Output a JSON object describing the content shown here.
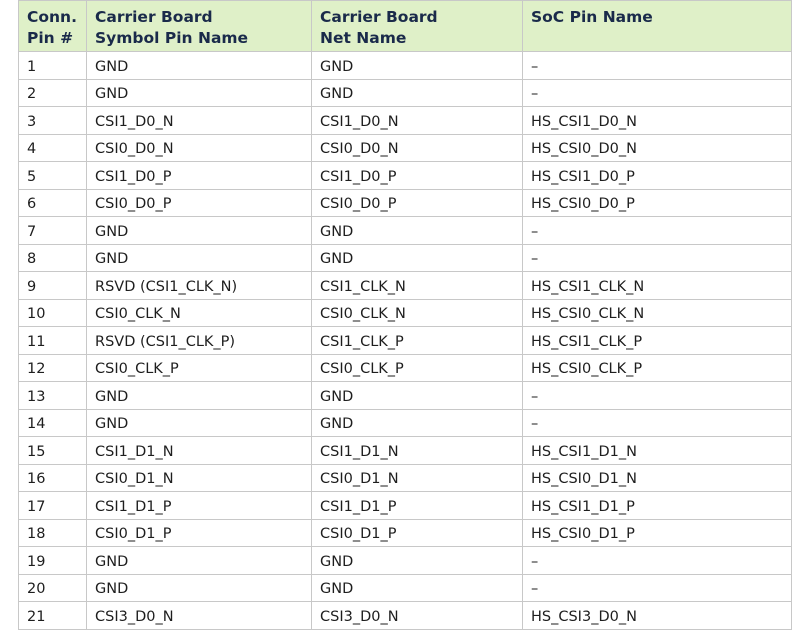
{
  "table": {
    "headers": [
      [
        "Conn.",
        "Pin #"
      ],
      [
        "Carrier Board",
        "Symbol Pin Name"
      ],
      [
        "Carrier Board",
        "Net Name"
      ],
      [
        "SoC Pin Name"
      ]
    ],
    "rows": [
      [
        "1",
        "GND",
        "GND",
        "–"
      ],
      [
        "2",
        "GND",
        "GND",
        "–"
      ],
      [
        "3",
        "CSI1_D0_N",
        "CSI1_D0_N",
        "HS_CSI1_D0_N"
      ],
      [
        "4",
        "CSI0_D0_N",
        "CSI0_D0_N",
        "HS_CSI0_D0_N"
      ],
      [
        "5",
        "CSI1_D0_P",
        "CSI1_D0_P",
        "HS_CSI1_D0_P"
      ],
      [
        "6",
        "CSI0_D0_P",
        "CSI0_D0_P",
        "HS_CSI0_D0_P"
      ],
      [
        "7",
        "GND",
        "GND",
        "–"
      ],
      [
        "8",
        "GND",
        "GND",
        "–"
      ],
      [
        "9",
        "RSVD (CSI1_CLK_N)",
        "CSI1_CLK_N",
        "HS_CSI1_CLK_N"
      ],
      [
        "10",
        "CSI0_CLK_N",
        "CSI0_CLK_N",
        "HS_CSI0_CLK_N"
      ],
      [
        "11",
        "RSVD (CSI1_CLK_P)",
        "CSI1_CLK_P",
        "HS_CSI1_CLK_P"
      ],
      [
        "12",
        "CSI0_CLK_P",
        "CSI0_CLK_P",
        "HS_CSI0_CLK_P"
      ],
      [
        "13",
        "GND",
        "GND",
        "–"
      ],
      [
        "14",
        "GND",
        "GND",
        "–"
      ],
      [
        "15",
        "CSI1_D1_N",
        "CSI1_D1_N",
        "HS_CSI1_D1_N"
      ],
      [
        "16",
        "CSI0_D1_N",
        "CSI0_D1_N",
        "HS_CSI0_D1_N"
      ],
      [
        "17",
        "CSI1_D1_P",
        "CSI1_D1_P",
        "HS_CSI1_D1_P"
      ],
      [
        "18",
        "CSI0_D1_P",
        "CSI0_D1_P",
        "HS_CSI0_D1_P"
      ],
      [
        "19",
        "GND",
        "GND",
        "–"
      ],
      [
        "20",
        "GND",
        "GND",
        "–"
      ],
      [
        "21",
        "CSI3_D0_N",
        "CSI3_D0_N",
        "HS_CSI3_D0_N"
      ]
    ]
  },
  "colors": {
    "header_bg": "#dff0c8",
    "header_text": "#1a2a4a",
    "border": "#c8c8c8"
  }
}
